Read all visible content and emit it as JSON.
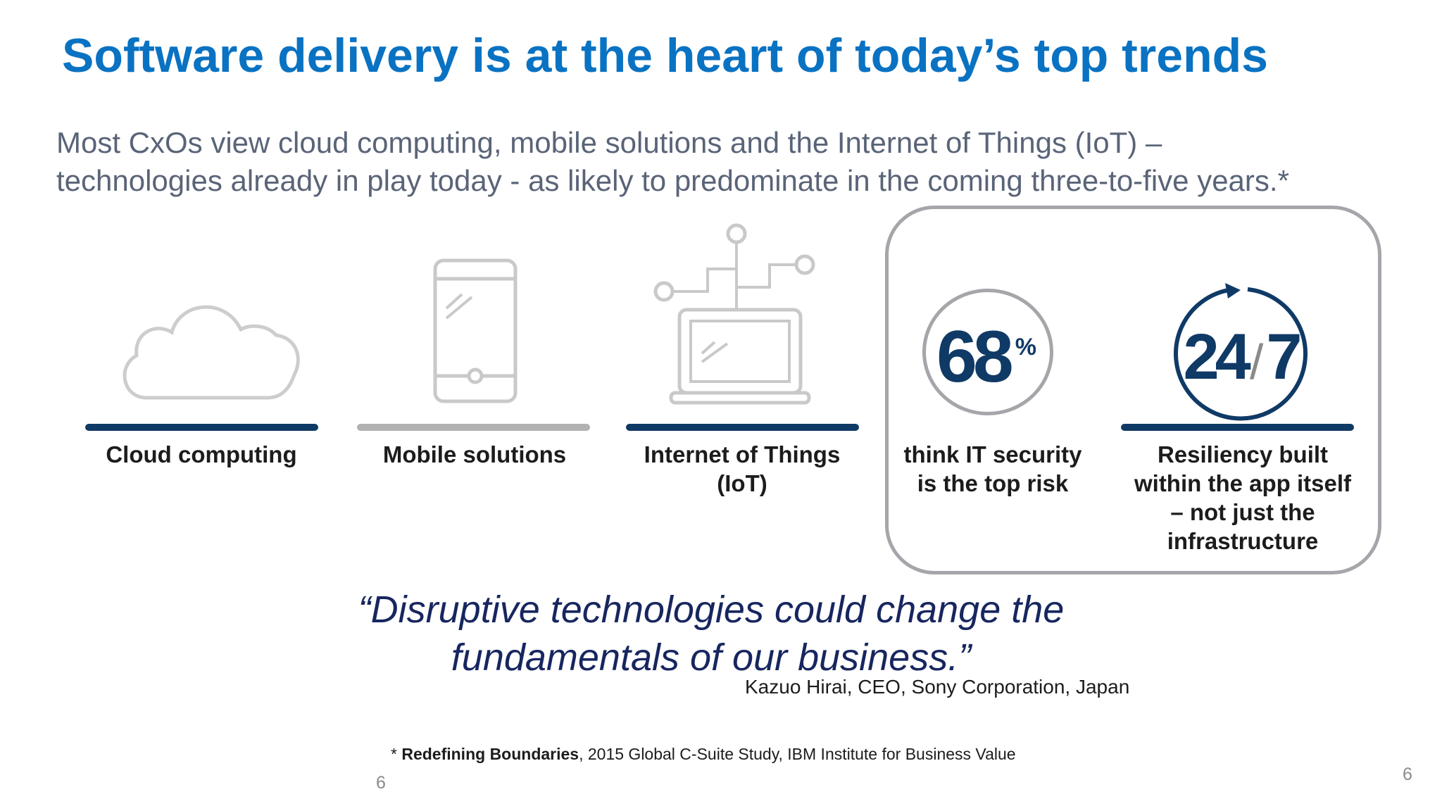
{
  "title": "Software delivery is at the heart of today’s top trends",
  "subtitle_line1": "Most CxOs view cloud computing, mobile solutions and the Internet of Things (IoT) –",
  "subtitle_line2": "technologies already in play today -  as likely to predominate in the coming three-to-five years.*",
  "items": [
    {
      "icon": "cloud-icon",
      "label": "Cloud computing",
      "bar_color": "#103a66"
    },
    {
      "icon": "smartphone-icon",
      "label": "Mobile solutions",
      "bar_color": "#b1b1b1"
    },
    {
      "icon": "iot-laptop-icon",
      "label_line1": "Internet of Things",
      "label_line2": "(IoT)",
      "bar_color": "#103a66"
    }
  ],
  "stat_security": {
    "number": "68",
    "suffix": "%",
    "label_line1": "think IT security",
    "label_line2": "is the top risk"
  },
  "stat_resiliency": {
    "left": "24",
    "slash": "/",
    "right": "7",
    "label_line1": "Resiliency built",
    "label_line2": "within the app itself",
    "label_line3": "– not just the",
    "label_line4": "infrastructure",
    "bar_color": "#103a66"
  },
  "quote_line1": "“Disruptive technologies could change the",
  "quote_line2": "fundamentals of our business.”",
  "attribution": "Kazuo Hirai, CEO, Sony Corporation, Japan",
  "footnote_bold": "Redefining Boundaries",
  "footnote_prefix": "* ",
  "footnote_rest": ", 2015 Global C-Suite Study, IBM Institute for Business Value",
  "page_number_inner": "6",
  "page_number_outer": "6",
  "colors": {
    "title": "#0a72c2",
    "accent_navy": "#103a66",
    "icon_gray": "#c9c9c9"
  }
}
